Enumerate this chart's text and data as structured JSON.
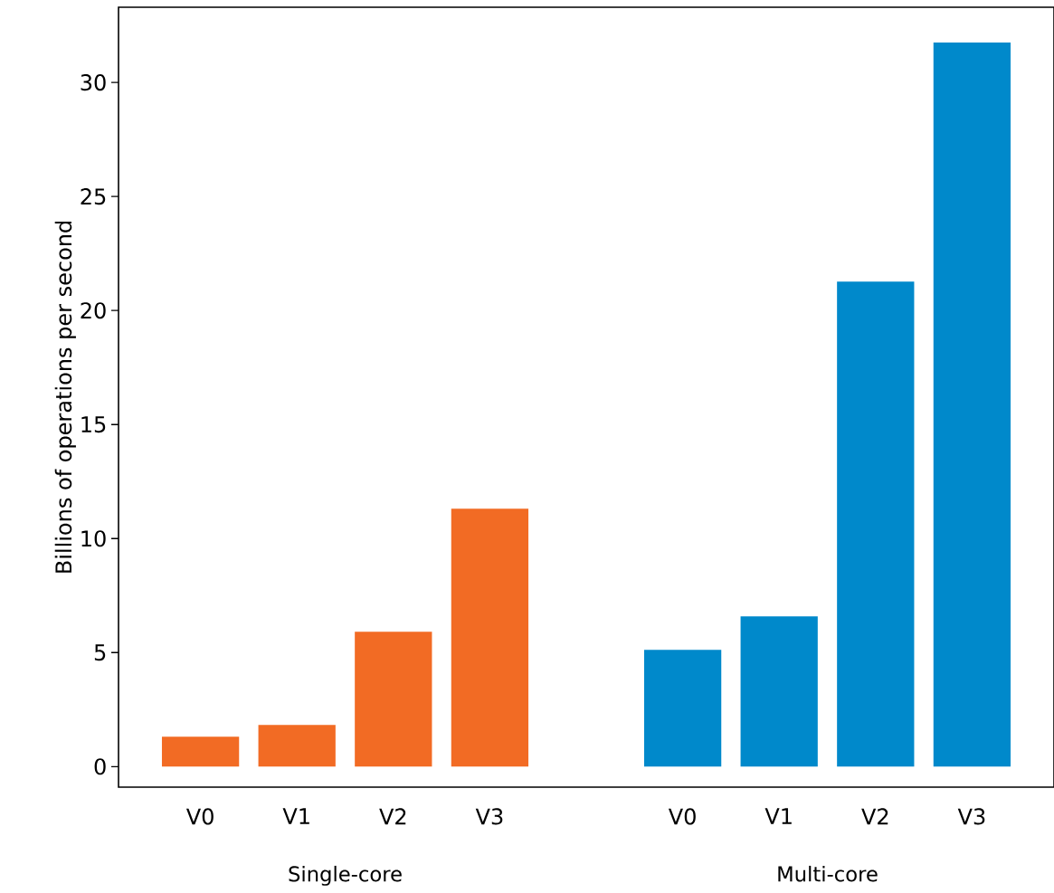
{
  "chart_data": {
    "type": "bar",
    "ylabel": "Billions of operations per second",
    "categories": [
      "V0",
      "V1",
      "V2",
      "V3",
      null,
      "V0",
      "V1",
      "V2",
      "V3"
    ],
    "values": [
      1.31,
      1.83,
      5.91,
      11.31,
      null,
      5.12,
      6.59,
      21.27,
      31.75
    ],
    "colors": [
      "#f26b24",
      "#f26b24",
      "#f26b24",
      "#f26b24",
      null,
      "#0089cb",
      "#0089cb",
      "#0089cb",
      "#0089cb"
    ],
    "annotations": [
      "Single-core",
      "Multi-core"
    ],
    "ylim": [
      -0.9,
      33.3
    ],
    "yticks": [
      0,
      5,
      10,
      15,
      20,
      25,
      30
    ],
    "grid": false
  }
}
